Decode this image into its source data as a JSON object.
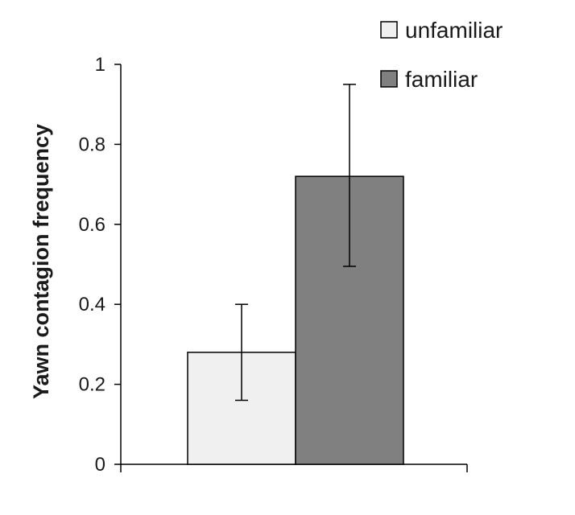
{
  "chart_data": {
    "type": "bar",
    "title": "",
    "xlabel": "",
    "ylabel": "Yawn contagion frequency",
    "ylim": [
      0,
      1
    ],
    "yticks": [
      "0",
      "0.2",
      "0.4",
      "0.6",
      "0.8",
      "1"
    ],
    "grid": false,
    "legend_position": "top-right",
    "series": [
      {
        "name": "unfamiliar",
        "value": 0.28,
        "error_low": 0.16,
        "error_high": 0.4,
        "color": "#f0f0f0"
      },
      {
        "name": "familiar",
        "value": 0.72,
        "error_low": 0.495,
        "error_high": 0.95,
        "color": "#808080"
      }
    ]
  }
}
